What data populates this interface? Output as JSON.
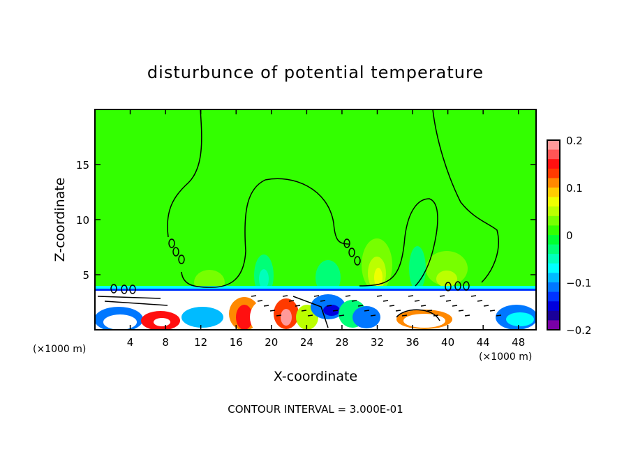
{
  "chart_data": {
    "type": "heatmap",
    "title": "disturbunce of potential temperature",
    "xlabel": "X-coordinate",
    "ylabel": "Z-coordinate",
    "x_unit_left": "(×1000 m)",
    "x_unit_right": "(×1000 m)",
    "xlim": [
      0,
      50
    ],
    "ylim": [
      0,
      20
    ],
    "x_ticks": [
      4,
      8,
      12,
      16,
      20,
      24,
      28,
      32,
      36,
      40,
      44,
      48
    ],
    "y_ticks": [
      5,
      10,
      15
    ],
    "footer": "CONTOUR INTERVAL = 3.000E-01",
    "colorbar": {
      "range": [
        -0.2,
        0.2
      ],
      "tick_labels": [
        "0.2",
        "0.1",
        "0",
        "−0.1",
        "−0.2"
      ],
      "tick_values": [
        0.2,
        0.1,
        0,
        -0.1,
        -0.2
      ],
      "colors_top_to_bottom": [
        "#ff9a9a",
        "#ff5555",
        "#ff1010",
        "#ff3a00",
        "#ff8800",
        "#ffcc00",
        "#eeff00",
        "#bbff00",
        "#77ff00",
        "#33ff00",
        "#00ff33",
        "#00ff77",
        "#00ffbb",
        "#00ffff",
        "#00bbff",
        "#0077ff",
        "#0033ff",
        "#0000dd",
        "#1a0099",
        "#7a00a8"
      ]
    },
    "background_color": "#33ff00"
  }
}
